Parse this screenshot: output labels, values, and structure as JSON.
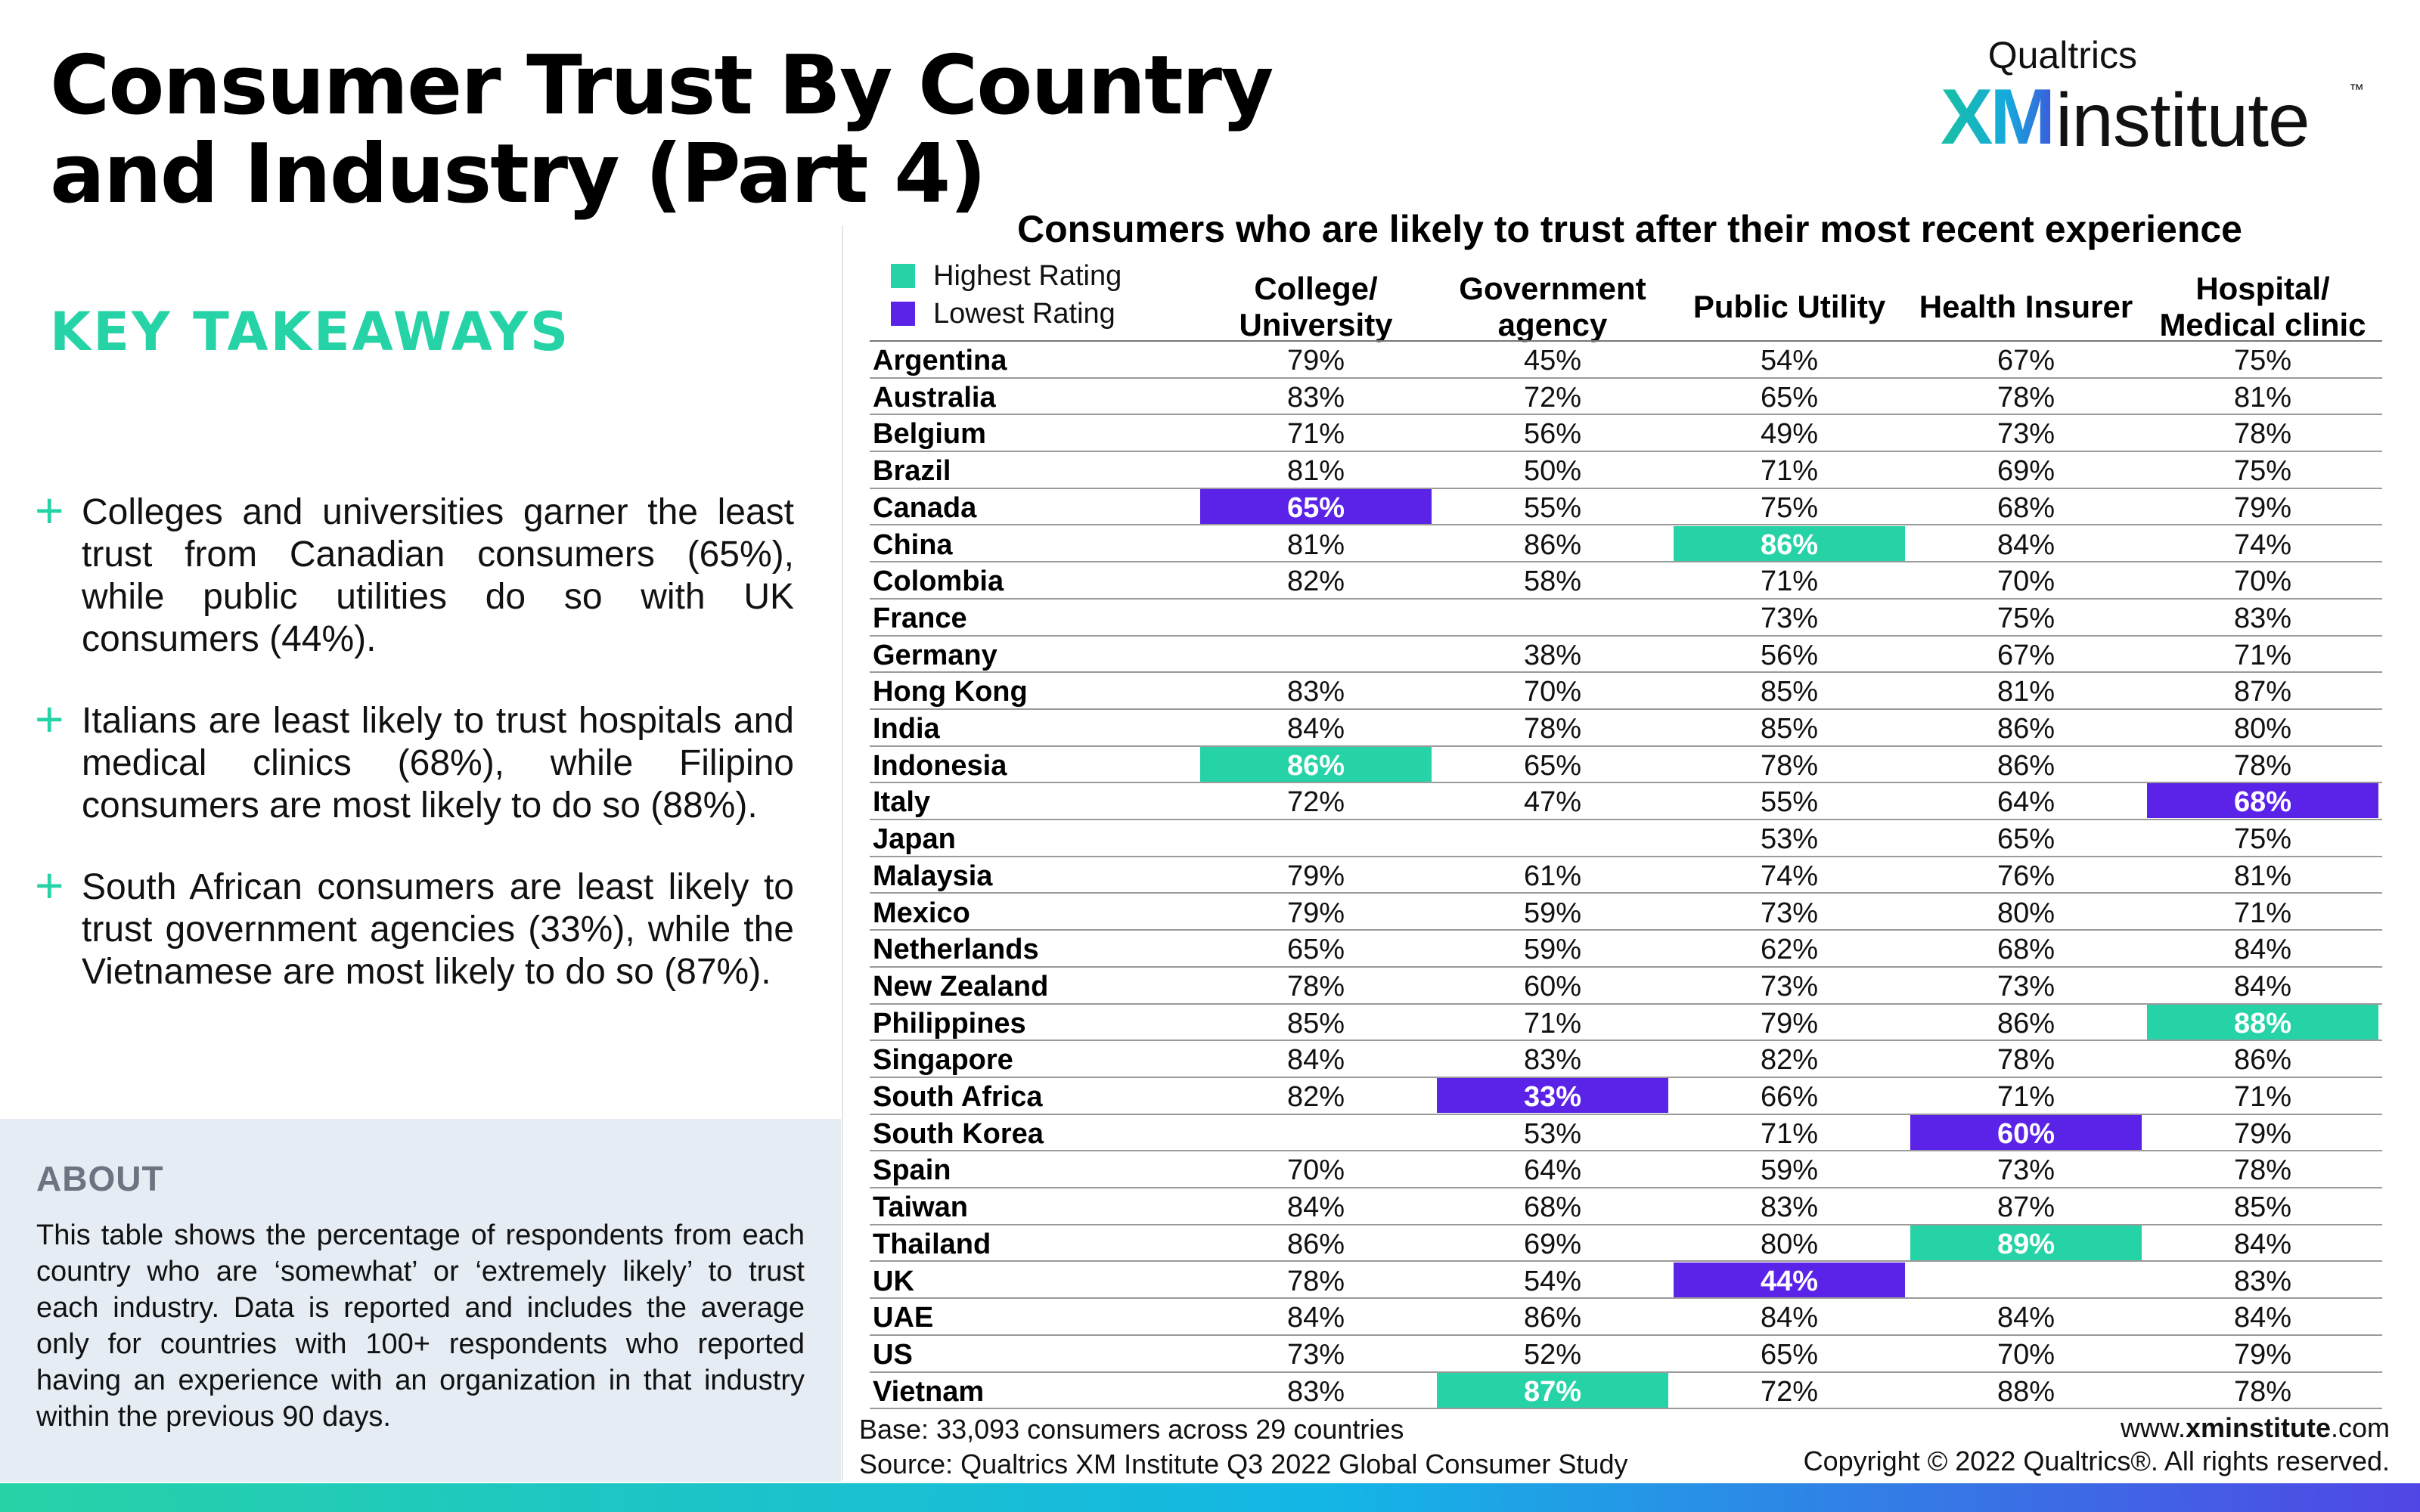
{
  "title": "Consumer Trust By Country and Industry (Part 4)",
  "brand": {
    "top": "Qualtrics",
    "xm": "XM",
    "institute": "institute",
    "tm": "™"
  },
  "takeaways": {
    "heading": "KEY TAKEAWAYS",
    "items": [
      "Colleges and universities garner the least trust from Canadian consumers (65%), while public utilities do so with UK consumers (44%).",
      "Italians are least likely to trust hospitals and medical clinics (68%), while Filipino consumers are most likely to do so (88%).",
      "South African consumers are least likely to trust government agencies (33%), while the Vietnamese are most likely to do so (87%)."
    ]
  },
  "about": {
    "heading": "ABOUT",
    "text": "This table shows the percentage of respondents from each country who are ‘somewhat’ or ‘extremely likely’ to trust each industry. Data is reported and includes the average only for countries with 100+ respondents who reported having an experience with an organization in that industry within the previous 90 days."
  },
  "colors": {
    "highest": "#26d3a7",
    "lowest": "#5b22e8",
    "accent": "#26d3a7"
  },
  "chart_data": {
    "type": "table",
    "title": "Consumers who are likely to trust after their most recent experience",
    "legend": [
      {
        "label": "Highest Rating",
        "color": "#26d3a7"
      },
      {
        "label": "Lowest Rating",
        "color": "#5b22e8"
      }
    ],
    "columns": [
      "College/ University",
      "Government agency",
      "Public Utility",
      "Health Insurer",
      "Hospital/ Medical clinic"
    ],
    "rows": [
      {
        "country": "Argentina",
        "values": [
          "79%",
          "45%",
          "54%",
          "67%",
          "75%"
        ],
        "marks": [
          "",
          "",
          "",
          "",
          ""
        ]
      },
      {
        "country": "Australia",
        "values": [
          "83%",
          "72%",
          "65%",
          "78%",
          "81%"
        ],
        "marks": [
          "",
          "",
          "",
          "",
          ""
        ]
      },
      {
        "country": "Belgium",
        "values": [
          "71%",
          "56%",
          "49%",
          "73%",
          "78%"
        ],
        "marks": [
          "",
          "",
          "",
          "",
          ""
        ]
      },
      {
        "country": "Brazil",
        "values": [
          "81%",
          "50%",
          "71%",
          "69%",
          "75%"
        ],
        "marks": [
          "",
          "",
          "",
          "",
          ""
        ]
      },
      {
        "country": "Canada",
        "values": [
          "65%",
          "55%",
          "75%",
          "68%",
          "79%"
        ],
        "marks": [
          "low",
          "",
          "",
          "",
          ""
        ]
      },
      {
        "country": "China",
        "values": [
          "81%",
          "86%",
          "86%",
          "84%",
          "74%"
        ],
        "marks": [
          "",
          "",
          "high",
          "",
          ""
        ]
      },
      {
        "country": "Colombia",
        "values": [
          "82%",
          "58%",
          "71%",
          "70%",
          "70%"
        ],
        "marks": [
          "",
          "",
          "",
          "",
          ""
        ]
      },
      {
        "country": "France",
        "values": [
          "",
          "",
          "73%",
          "75%",
          "83%"
        ],
        "marks": [
          "",
          "",
          "",
          "",
          ""
        ]
      },
      {
        "country": "Germany",
        "values": [
          "",
          "38%",
          "56%",
          "67%",
          "71%"
        ],
        "marks": [
          "",
          "",
          "",
          "",
          ""
        ]
      },
      {
        "country": "Hong Kong",
        "values": [
          "83%",
          "70%",
          "85%",
          "81%",
          "87%"
        ],
        "marks": [
          "",
          "",
          "",
          "",
          ""
        ]
      },
      {
        "country": "India",
        "values": [
          "84%",
          "78%",
          "85%",
          "86%",
          "80%"
        ],
        "marks": [
          "",
          "",
          "",
          "",
          ""
        ]
      },
      {
        "country": "Indonesia",
        "values": [
          "86%",
          "65%",
          "78%",
          "86%",
          "78%"
        ],
        "marks": [
          "high",
          "",
          "",
          "",
          ""
        ]
      },
      {
        "country": "Italy",
        "values": [
          "72%",
          "47%",
          "55%",
          "64%",
          "68%"
        ],
        "marks": [
          "",
          "",
          "",
          "",
          "low"
        ]
      },
      {
        "country": "Japan",
        "values": [
          "",
          "",
          "53%",
          "65%",
          "75%"
        ],
        "marks": [
          "",
          "",
          "",
          "",
          ""
        ]
      },
      {
        "country": "Malaysia",
        "values": [
          "79%",
          "61%",
          "74%",
          "76%",
          "81%"
        ],
        "marks": [
          "",
          "",
          "",
          "",
          ""
        ]
      },
      {
        "country": "Mexico",
        "values": [
          "79%",
          "59%",
          "73%",
          "80%",
          "71%"
        ],
        "marks": [
          "",
          "",
          "",
          "",
          ""
        ]
      },
      {
        "country": "Netherlands",
        "values": [
          "65%",
          "59%",
          "62%",
          "68%",
          "84%"
        ],
        "marks": [
          "",
          "",
          "",
          "",
          ""
        ]
      },
      {
        "country": "New Zealand",
        "values": [
          "78%",
          "60%",
          "73%",
          "73%",
          "84%"
        ],
        "marks": [
          "",
          "",
          "",
          "",
          ""
        ]
      },
      {
        "country": "Philippines",
        "values": [
          "85%",
          "71%",
          "79%",
          "86%",
          "88%"
        ],
        "marks": [
          "",
          "",
          "",
          "",
          "high"
        ]
      },
      {
        "country": "Singapore",
        "values": [
          "84%",
          "83%",
          "82%",
          "78%",
          "86%"
        ],
        "marks": [
          "",
          "",
          "",
          "",
          ""
        ]
      },
      {
        "country": "South Africa",
        "values": [
          "82%",
          "33%",
          "66%",
          "71%",
          "71%"
        ],
        "marks": [
          "",
          "low",
          "",
          "",
          ""
        ]
      },
      {
        "country": "South Korea",
        "values": [
          "",
          "53%",
          "71%",
          "60%",
          "79%"
        ],
        "marks": [
          "",
          "",
          "",
          "low",
          ""
        ]
      },
      {
        "country": "Spain",
        "values": [
          "70%",
          "64%",
          "59%",
          "73%",
          "78%"
        ],
        "marks": [
          "",
          "",
          "",
          "",
          ""
        ]
      },
      {
        "country": "Taiwan",
        "values": [
          "84%",
          "68%",
          "83%",
          "87%",
          "85%"
        ],
        "marks": [
          "",
          "",
          "",
          "",
          ""
        ]
      },
      {
        "country": "Thailand",
        "values": [
          "86%",
          "69%",
          "80%",
          "89%",
          "84%"
        ],
        "marks": [
          "",
          "",
          "",
          "high",
          ""
        ]
      },
      {
        "country": "UK",
        "values": [
          "78%",
          "54%",
          "44%",
          "",
          "83%"
        ],
        "marks": [
          "",
          "",
          "low",
          "",
          ""
        ]
      },
      {
        "country": "UAE",
        "values": [
          "84%",
          "86%",
          "84%",
          "84%",
          "84%"
        ],
        "marks": [
          "",
          "",
          "",
          "",
          ""
        ]
      },
      {
        "country": "US",
        "values": [
          "73%",
          "52%",
          "65%",
          "70%",
          "79%"
        ],
        "marks": [
          "",
          "",
          "",
          "",
          ""
        ]
      },
      {
        "country": "Vietnam",
        "values": [
          "83%",
          "87%",
          "72%",
          "88%",
          "78%"
        ],
        "marks": [
          "",
          "high",
          "",
          "",
          ""
        ]
      }
    ]
  },
  "footer": {
    "base": "Base: 33,093 consumers across 29 countries",
    "source": "Source: Qualtrics XM Institute Q3 2022 Global Consumer Study",
    "web_prefix": "www.",
    "web_bold": "xminstitute",
    "web_suffix": ".com",
    "copyright": "Copyright © 2022 Qualtrics®. All rights reserved."
  }
}
